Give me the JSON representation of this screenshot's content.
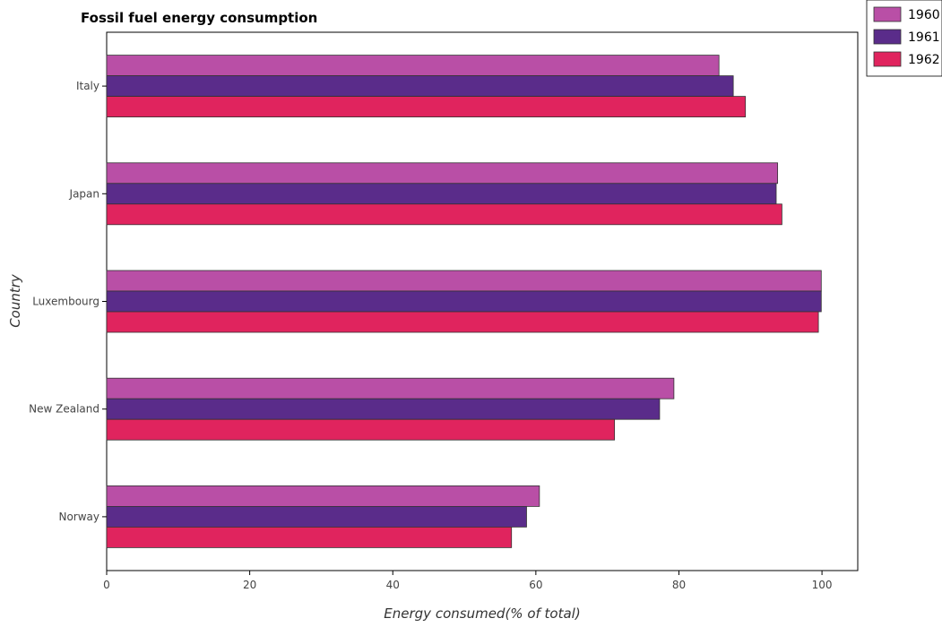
{
  "chart_data": {
    "type": "bar",
    "orientation": "horizontal",
    "title": "Fossil fuel energy consumption",
    "xlabel": "Energy consumed(% of total)",
    "ylabel": "Country",
    "xlim": [
      0,
      105
    ],
    "xticks": [
      0,
      20,
      40,
      60,
      80,
      100
    ],
    "categories": [
      "Italy",
      "Japan",
      "Luxembourg",
      "New Zealand",
      "Norway"
    ],
    "series": [
      {
        "name": "1960",
        "color": "#b94fa6",
        "values": [
          85.6,
          93.8,
          99.9,
          79.3,
          60.5
        ]
      },
      {
        "name": "1961",
        "color": "#5a2c8a",
        "values": [
          87.6,
          93.6,
          99.9,
          77.3,
          58.7
        ]
      },
      {
        "name": "1962",
        "color": "#e0245e",
        "values": [
          89.3,
          94.4,
          99.5,
          71.0,
          56.6
        ]
      }
    ],
    "grid": false,
    "legend_position": "top-right"
  }
}
